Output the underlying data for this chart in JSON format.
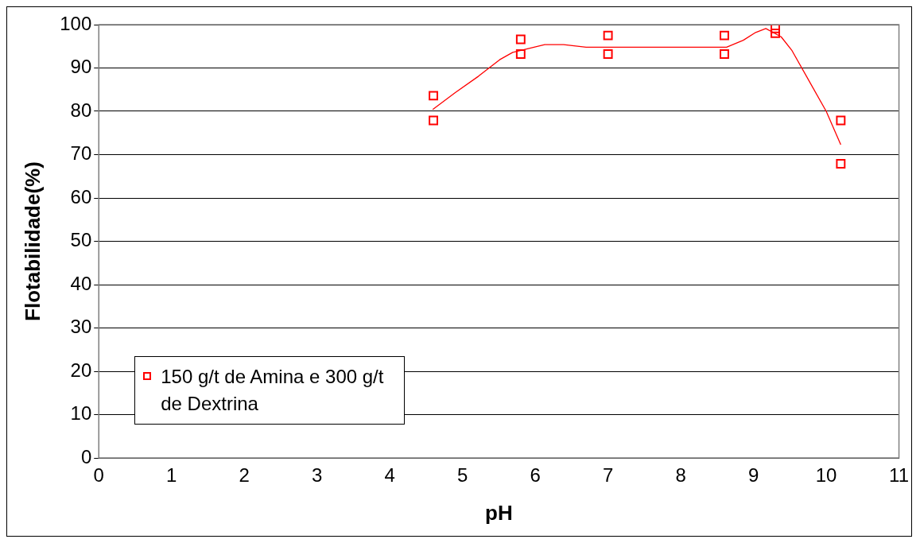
{
  "chart_data": {
    "type": "scatter",
    "xlabel": "pH",
    "ylabel": "Flotabilidade(%)",
    "xlim": [
      0,
      11
    ],
    "xticks": [
      0,
      1,
      2,
      3,
      4,
      5,
      6,
      7,
      8,
      9,
      10,
      11
    ],
    "ylim": [
      0,
      100
    ],
    "yticks": [
      0,
      10,
      20,
      30,
      40,
      50,
      60,
      70,
      80,
      90,
      100
    ],
    "grid": "y",
    "legend": "bottom left",
    "marker": "square",
    "series": [
      {
        "name": "150 g/t de Amina e 300 g/t de Dextrina",
        "type": "scatter",
        "color": "#ff0000",
        "x": [
          4.6,
          4.6,
          5.8,
          5.8,
          7.0,
          7.0,
          8.6,
          8.6,
          9.3,
          9.3,
          10.2,
          10.2
        ],
        "values": [
          83.6,
          77.9,
          96.6,
          93.2,
          97.5,
          93.2,
          97.5,
          93.2,
          99.1,
          98.0,
          77.9,
          67.9
        ]
      },
      {
        "type": "line",
        "color": "#ff0000",
        "marker": "none",
        "line_style": "solid",
        "x": [
          4.59,
          4.9,
          5.22,
          5.51,
          5.69,
          6.13,
          6.39,
          6.7,
          8.63,
          8.86,
          9.03,
          9.17,
          9.38,
          9.53,
          10.0,
          10.2
        ],
        "values": [
          80.4,
          84.3,
          88.1,
          91.9,
          93.6,
          95.4,
          95.4,
          94.8,
          94.8,
          96.4,
          98.2,
          99.1,
          97.2,
          94.0,
          80.0,
          72.3
        ]
      }
    ]
  }
}
